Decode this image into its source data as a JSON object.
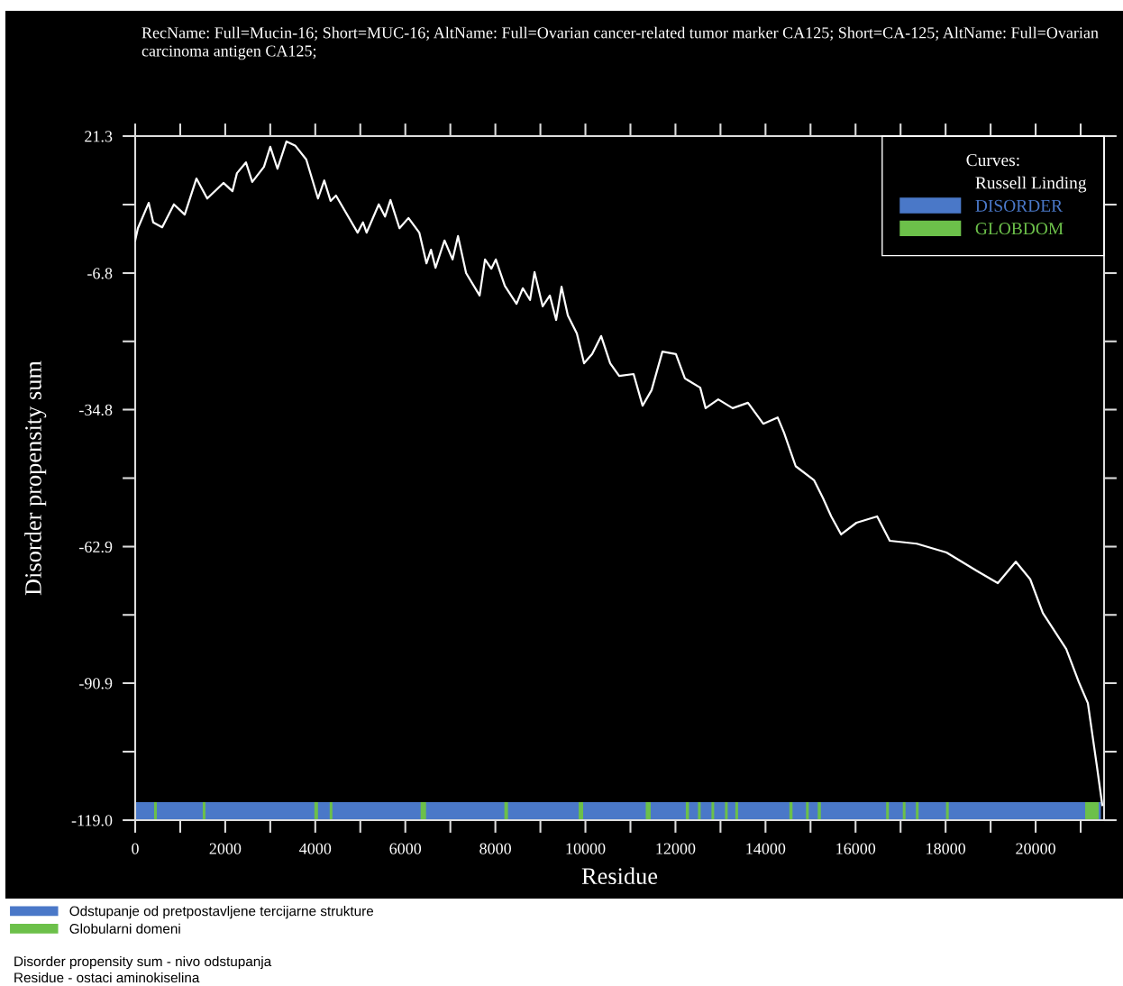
{
  "chart_data": {
    "type": "line",
    "title": "RecName: Full=Mucin-16; Short=MUC-16; AltName: Full=Ovarian cancer-related tumor marker CA125; Short=CA-125; AltName: Full=Ovarian carcinoma antigen CA125;",
    "xlabel": "Residue",
    "ylabel": "Disorder propensity sum",
    "legend_title": "Curves:",
    "x": [
      0,
      60,
      300,
      400,
      600,
      860,
      1100,
      1360,
      1600,
      1960,
      2160,
      2260,
      2460,
      2600,
      2860,
      3000,
      3160,
      3360,
      3560,
      3800,
      4060,
      4200,
      4340,
      4460,
      4940,
      5060,
      5140,
      5410,
      5550,
      5670,
      5870,
      6070,
      6310,
      6470,
      6570,
      6670,
      6870,
      7050,
      7170,
      7350,
      7650,
      7770,
      7910,
      8010,
      8210,
      8470,
      8610,
      8770,
      8870,
      9050,
      9210,
      9350,
      9470,
      9610,
      9810,
      9970,
      10150,
      10350,
      10550,
      10750,
      11070,
      11270,
      11470,
      11710,
      12010,
      12210,
      12550,
      12670,
      12950,
      13270,
      13610,
      13950,
      14270,
      14410,
      14670,
      15080,
      15280,
      15460,
      15680,
      16020,
      16480,
      16760,
      17360,
      18020,
      18680,
      19160,
      19560,
      19880,
      20160,
      20420,
      20680,
      20960,
      21160,
      21360,
      21480
    ],
    "series": [
      {
        "name": "Russell Linding",
        "color": "#ffffff",
        "values": [
          -0.1,
          2.4,
          7.6,
          3.6,
          2.6,
          7.3,
          5.2,
          12.6,
          8.5,
          11.7,
          10.0,
          13.7,
          15.9,
          11.9,
          15.0,
          19.1,
          14.6,
          20.2,
          19.3,
          16.5,
          8.5,
          12.2,
          8.0,
          9.1,
          1.5,
          3.6,
          1.5,
          7.3,
          4.8,
          8.2,
          2.4,
          4.5,
          1.5,
          -4.8,
          -2.0,
          -5.7,
          -0.1,
          -4.0,
          0.8,
          -6.8,
          -11.4,
          -4.0,
          -5.9,
          -4.0,
          -9.4,
          -13.1,
          -9.9,
          -12.3,
          -6.6,
          -13.6,
          -11.4,
          -16.4,
          -9.6,
          -15.5,
          -19.2,
          -25.3,
          -23.4,
          -19.7,
          -25.3,
          -27.9,
          -27.5,
          -34.0,
          -30.8,
          -22.9,
          -23.4,
          -28.4,
          -30.3,
          -34.5,
          -32.7,
          -34.5,
          -33.4,
          -37.7,
          -36.4,
          -39.5,
          -46.4,
          -49.3,
          -53.0,
          -56.7,
          -60.4,
          -58.0,
          -56.7,
          -61.7,
          -62.3,
          -64.1,
          -67.8,
          -70.4,
          -66.0,
          -69.6,
          -76.5,
          -80.2,
          -83.9,
          -90.7,
          -95.0,
          -107.9,
          -115.9
        ]
      },
      {
        "name": "DISORDER",
        "type": "area",
        "color": "#4a78c8",
        "x": [
          0,
          0,
          21450,
          21450
        ],
        "values": [
          -119,
          -115.3,
          -115.3,
          -119
        ]
      },
      {
        "name": "GLOBDOM",
        "type": "area",
        "color": "#6cc04a",
        "x": [
          420,
          420,
          480,
          480,
          1500,
          1500,
          1560,
          1560,
          3980,
          3980,
          4060,
          4060,
          4320,
          4320,
          4380,
          4380,
          6340,
          6340,
          6460,
          6460,
          8200,
          8200,
          8280,
          8280,
          9850,
          9850,
          9950,
          9950,
          11340,
          11340,
          11450,
          11450,
          12230,
          12230,
          12300,
          12300,
          12500,
          12500,
          12560,
          12560,
          12800,
          12800,
          12860,
          12860,
          13100,
          13100,
          13160,
          13160,
          13330,
          13330,
          13390,
          13390,
          14530,
          14530,
          14600,
          14600,
          14900,
          14900,
          14960,
          14960,
          15160,
          15160,
          15230,
          15230,
          16680,
          16680,
          16740,
          16740,
          17050,
          17050,
          17110,
          17110,
          17340,
          17340,
          17400,
          17400,
          18010,
          18010,
          18070,
          18070,
          21100,
          21100,
          21400,
          21400
        ],
        "values": [
          -119,
          -115.3,
          -115.3,
          -119,
          -119,
          -115.3,
          -115.3,
          -119,
          -119,
          -115.3,
          -115.3,
          -119,
          -119,
          -115.3,
          -115.3,
          -119,
          -119,
          -115.3,
          -115.3,
          -119,
          -119,
          -115.3,
          -115.3,
          -119,
          -119,
          -115.3,
          -115.3,
          -119,
          -119,
          -115.3,
          -115.3,
          -119,
          -119,
          -115.3,
          -115.3,
          -119,
          -119,
          -115.3,
          -115.3,
          -119,
          -119,
          -115.3,
          -115.3,
          -119,
          -119,
          -115.3,
          -115.3,
          -119,
          -119,
          -115.3,
          -115.3,
          -119,
          -119,
          -115.3,
          -115.3,
          -119,
          -119,
          -115.3,
          -115.3,
          -119,
          -119,
          -115.3,
          -115.3,
          -119,
          -119,
          -115.3,
          -115.3,
          -119,
          -119,
          -115.3,
          -115.3,
          -119,
          -119,
          -115.3,
          -115.3,
          -119,
          -119,
          -115.3,
          -115.3,
          -119,
          -119,
          -115.3,
          -115.3,
          -119
        ]
      }
    ],
    "xlim": [
      0,
      21520
    ],
    "ylim": [
      -119.0,
      21.3
    ],
    "xticks": [
      0,
      {
        "value": 1000,
        "label": null
      },
      2000,
      {
        "value": 3000,
        "label": null
      },
      4000,
      {
        "value": 5000,
        "label": null
      },
      6000,
      {
        "value": 7000,
        "label": null
      },
      8000,
      {
        "value": 9000,
        "label": null
      },
      10000,
      {
        "value": 11000,
        "label": null
      },
      12000,
      {
        "value": 13000,
        "label": null
      },
      14000,
      {
        "value": 15000,
        "label": null
      },
      16000,
      {
        "value": 17000,
        "label": null
      },
      18000,
      {
        "value": 19000,
        "label": null
      },
      20000,
      {
        "value": 21000,
        "label": null
      }
    ],
    "yticks": [
      {
        "value": -119.0,
        "label": "-119.0"
      },
      {
        "value": -104.95,
        "label": null
      },
      {
        "value": -90.9,
        "label": "-90.9"
      },
      {
        "value": -76.9,
        "label": null
      },
      {
        "value": -62.9,
        "label": "-62.9"
      },
      {
        "value": -48.85,
        "label": null
      },
      {
        "value": -34.8,
        "label": "-34.8"
      },
      {
        "value": -20.8,
        "label": null
      },
      {
        "value": -6.8,
        "label": "-6.8"
      },
      {
        "value": 7.25,
        "label": null
      },
      21.3
    ],
    "legend": "top right",
    "grid": false,
    "marker": "none",
    "line_style": "solid",
    "annotations": [
      "Odstupanje od pretpostavljene tercijarne strukture",
      "Globularni domeni",
      "Disorder propensity sum - nivo odstupanja",
      "Residue - ostaci aminokiselina"
    ]
  }
}
